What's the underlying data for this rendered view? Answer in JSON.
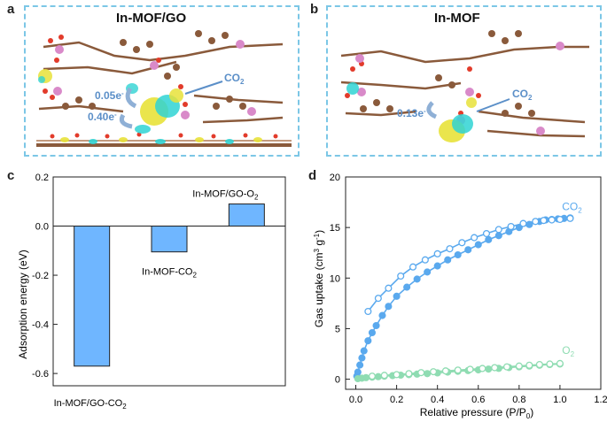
{
  "figure": {
    "panels": {
      "a": {
        "letter": "a",
        "title": "In-MOF/GO",
        "annotations": {
          "co2": "CO",
          "co2_sub": "2",
          "charge_upper": "0.05e",
          "charge_lower": "0.40e",
          "minus": "-"
        }
      },
      "b": {
        "letter": "b",
        "title": "In-MOF",
        "annotations": {
          "co2": "CO",
          "co2_sub": "2",
          "charge": "0.13e",
          "minus": "-"
        }
      },
      "c": {
        "letter": "c"
      },
      "d": {
        "letter": "d"
      }
    }
  },
  "colors": {
    "box_border": "#7cc7e6",
    "bar_fill": "#6fb6ff",
    "co2_series": "#5aa9ee",
    "o2_series": "#8fdcb2",
    "annotation_blue": "#5b8fc8",
    "carbon": "#8a5a3b",
    "oxygen": "#e23b2b",
    "indium": "#d98ac9",
    "isosurface_yellow": "#e8e23a",
    "isosurface_cyan": "#2fd3d3"
  },
  "chart_data": [
    {
      "type": "bar",
      "panel": "c",
      "categories": [
        "In-MOF/GO-CO2",
        "In-MOF-CO2",
        "In-MOF/GO-O2"
      ],
      "bar_labels": [
        {
          "main": "In-MOF/GO-CO",
          "sub": "2"
        },
        {
          "main": "In-MOF-CO",
          "sub": "2"
        },
        {
          "main": "In-MOF/GO-O",
          "sub": "2"
        }
      ],
      "values": [
        -0.57,
        -0.105,
        0.09
      ],
      "ylabel": "Adsorption energy (eV)",
      "ylim": [
        -0.65,
        0.2
      ],
      "yticks": [
        0.2,
        0.0,
        -0.2,
        -0.4,
        -0.6
      ],
      "ytick_labels": [
        "0.2",
        "0.0",
        "-0.2",
        "-0.4",
        "-0.6"
      ]
    },
    {
      "type": "scatter",
      "panel": "d",
      "xlabel": "Relative pressure (P/P",
      "xlabel_sub": "0",
      "xlabel_end": ")",
      "ylabel": "Gas uptake (cm",
      "ylabel_sup1": "3",
      "ylabel_mid": " g",
      "ylabel_sup2": "-1",
      "ylabel_end": ")",
      "xlim": [
        -0.05,
        1.2
      ],
      "ylim": [
        -1,
        20
      ],
      "xticks": [
        0.0,
        0.2,
        0.4,
        0.6,
        0.8,
        1.0,
        1.2
      ],
      "xtick_labels": [
        "0.0",
        "0.2",
        "0.4",
        "0.6",
        "0.8",
        "1.0",
        "1.2"
      ],
      "yticks": [
        0,
        5,
        10,
        15,
        20
      ],
      "ytick_labels": [
        "0",
        "5",
        "10",
        "15",
        "20"
      ],
      "legend": [
        {
          "main": "CO",
          "sub": "2",
          "series": "co2"
        },
        {
          "main": "O",
          "sub": "2",
          "series": "o2"
        }
      ],
      "series": [
        {
          "name": "CO2 adsorption",
          "gas": "co2",
          "filled": true,
          "x": [
            0.005,
            0.01,
            0.02,
            0.03,
            0.04,
            0.06,
            0.08,
            0.1,
            0.13,
            0.16,
            0.2,
            0.25,
            0.3,
            0.35,
            0.4,
            0.45,
            0.5,
            0.55,
            0.6,
            0.65,
            0.7,
            0.75,
            0.8,
            0.85,
            0.9,
            0.93,
            0.96,
            0.99,
            1.02,
            1.05
          ],
          "y": [
            0.3,
            0.7,
            1.4,
            2.1,
            2.8,
            3.8,
            4.6,
            5.3,
            6.3,
            7.2,
            8.2,
            9.1,
            9.9,
            10.6,
            11.2,
            11.8,
            12.3,
            12.8,
            13.3,
            13.8,
            14.2,
            14.6,
            15.0,
            15.3,
            15.6,
            15.75,
            15.8,
            15.85,
            15.9,
            15.95
          ]
        },
        {
          "name": "CO2 desorption",
          "gas": "co2",
          "filled": false,
          "x": [
            1.05,
            1.0,
            0.96,
            0.92,
            0.88,
            0.82,
            0.76,
            0.7,
            0.64,
            0.58,
            0.52,
            0.46,
            0.4,
            0.34,
            0.28,
            0.22,
            0.16,
            0.11,
            0.06
          ],
          "y": [
            15.9,
            15.8,
            15.75,
            15.7,
            15.6,
            15.4,
            15.1,
            14.8,
            14.4,
            14.0,
            13.5,
            12.9,
            12.4,
            11.8,
            11.1,
            10.2,
            9.0,
            8.0,
            6.7
          ]
        },
        {
          "name": "O2 adsorption",
          "gas": "o2",
          "filled": true,
          "x": [
            0.01,
            0.03,
            0.05,
            0.08,
            0.11,
            0.14,
            0.18,
            0.22,
            0.26,
            0.3,
            0.35,
            0.4,
            0.45,
            0.5,
            0.55,
            0.6,
            0.65,
            0.7,
            0.75,
            0.8,
            0.85,
            0.9,
            0.95,
            1.0
          ],
          "y": [
            0.05,
            0.1,
            0.15,
            0.2,
            0.25,
            0.3,
            0.35,
            0.4,
            0.45,
            0.5,
            0.55,
            0.62,
            0.7,
            0.78,
            0.85,
            0.92,
            1.0,
            1.07,
            1.15,
            1.22,
            1.3,
            1.38,
            1.45,
            1.5
          ]
        },
        {
          "name": "O2 desorption",
          "gas": "o2",
          "filled": false,
          "x": [
            1.0,
            0.95,
            0.9,
            0.85,
            0.8,
            0.74,
            0.68,
            0.62,
            0.56,
            0.5,
            0.44,
            0.38,
            0.32,
            0.26,
            0.2,
            0.14,
            0.08
          ],
          "y": [
            1.55,
            1.5,
            1.45,
            1.38,
            1.3,
            1.22,
            1.14,
            1.06,
            0.98,
            0.9,
            0.82,
            0.74,
            0.65,
            0.55,
            0.45,
            0.38,
            0.3
          ]
        }
      ]
    }
  ]
}
